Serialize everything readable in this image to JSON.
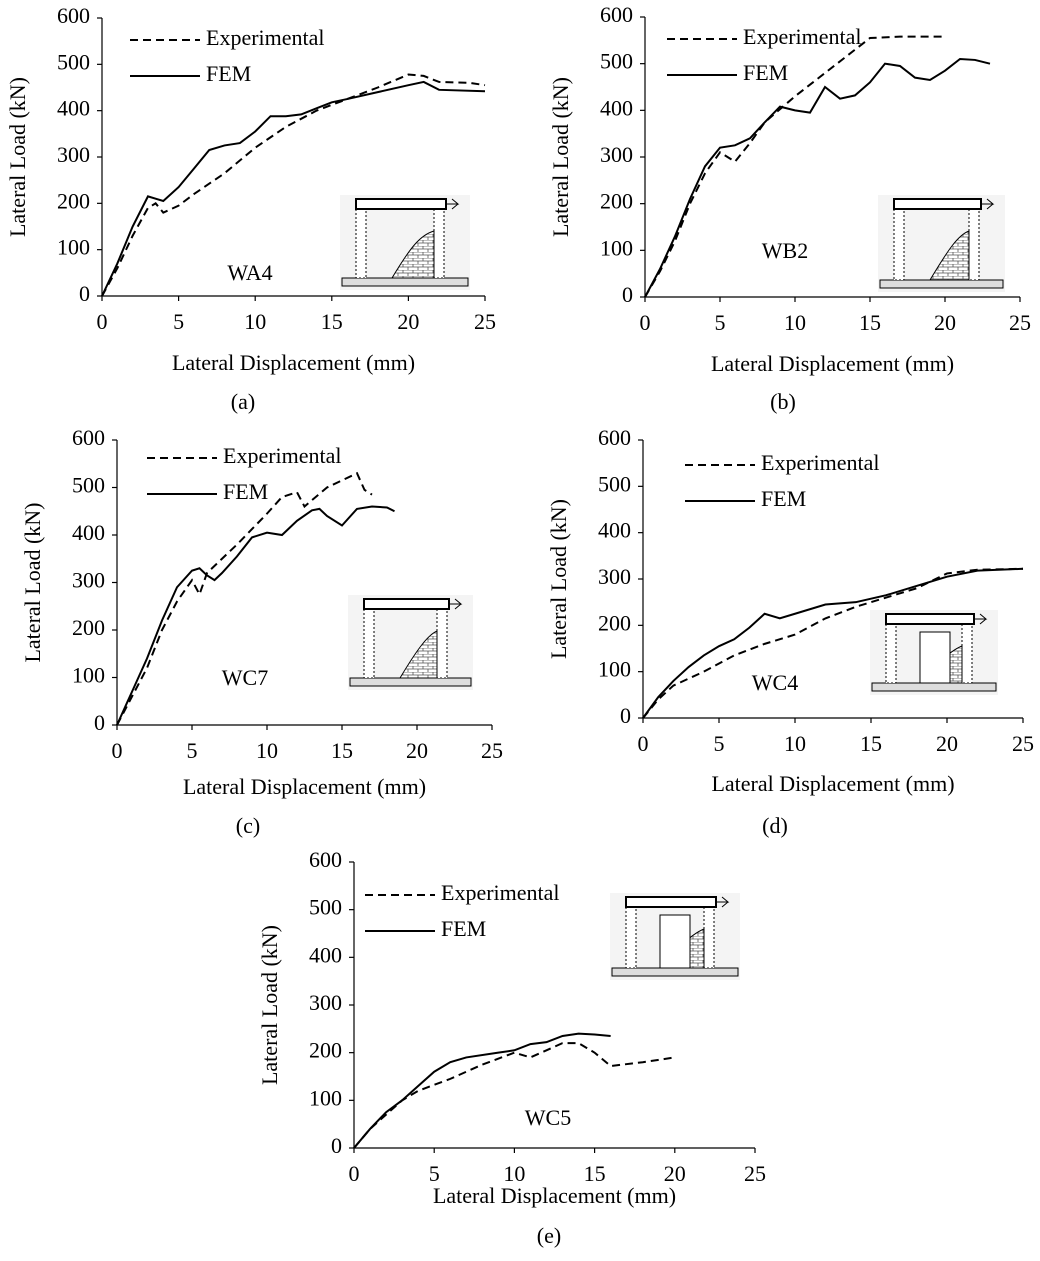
{
  "chart_data": [
    {
      "type": "line",
      "label": "WA4",
      "caption": "(a)",
      "xlabel": "Lateral Displacement (mm)",
      "ylabel": "Lateral Load (kN)",
      "xlim": [
        0,
        25
      ],
      "xticks": [
        0,
        5,
        10,
        15,
        20,
        25
      ],
      "ylim": [
        0,
        600
      ],
      "yticks": [
        0,
        100,
        200,
        300,
        400,
        500,
        600
      ],
      "series": [
        {
          "name": "Experimental",
          "color": "#000000",
          "dash": true,
          "x": [
            0,
            1,
            2,
            3,
            3.5,
            4,
            5,
            6,
            8,
            10,
            12,
            14,
            16,
            18,
            20,
            21,
            22,
            24,
            25
          ],
          "values": [
            0,
            60,
            130,
            190,
            200,
            180,
            195,
            220,
            265,
            320,
            365,
            400,
            425,
            450,
            478,
            475,
            462,
            460,
            455
          ]
        },
        {
          "name": "FEM",
          "color": "#000000",
          "dash": false,
          "x": [
            0,
            1,
            2,
            3,
            3.5,
            4,
            5,
            6,
            7,
            8,
            9,
            10,
            11,
            12,
            13,
            14,
            15,
            16,
            18,
            20,
            21,
            22,
            25
          ],
          "values": [
            0,
            70,
            150,
            215,
            210,
            205,
            235,
            275,
            315,
            325,
            330,
            355,
            388,
            388,
            392,
            405,
            418,
            425,
            440,
            455,
            462,
            445,
            442
          ]
        }
      ]
    },
    {
      "type": "line",
      "label": "WB2",
      "caption": "(b)",
      "xlabel": "Lateral Displacement (mm)",
      "ylabel": "Lateral Load (kN)",
      "xlim": [
        0,
        25
      ],
      "xticks": [
        0,
        5,
        10,
        15,
        20,
        25
      ],
      "ylim": [
        0,
        600
      ],
      "yticks": [
        0,
        100,
        200,
        300,
        400,
        500,
        600
      ],
      "series": [
        {
          "name": "Experimental",
          "color": "#000000",
          "dash": true,
          "x": [
            0,
            1,
            2,
            3,
            4,
            5,
            6,
            7,
            8,
            10,
            12,
            14,
            15,
            17,
            20
          ],
          "values": [
            0,
            55,
            120,
            200,
            265,
            310,
            290,
            330,
            375,
            430,
            480,
            530,
            555,
            558,
            558
          ]
        },
        {
          "name": "FEM",
          "color": "#000000",
          "dash": false,
          "x": [
            0,
            1,
            2,
            3,
            4,
            5,
            6,
            7,
            8,
            9,
            10,
            11,
            12,
            13,
            14,
            15,
            16,
            17,
            18,
            19,
            20,
            21,
            22,
            23
          ],
          "values": [
            0,
            60,
            130,
            210,
            280,
            320,
            325,
            340,
            375,
            408,
            400,
            395,
            450,
            425,
            432,
            460,
            500,
            495,
            470,
            465,
            485,
            510,
            508,
            500
          ]
        }
      ]
    },
    {
      "type": "line",
      "label": "WC7",
      "caption": "(c)",
      "xlabel": "Lateral Displacement (mm)",
      "ylabel": "Lateral Load (kN)",
      "xlim": [
        0,
        25
      ],
      "xticks": [
        0,
        5,
        10,
        15,
        20,
        25
      ],
      "ylim": [
        0,
        600
      ],
      "yticks": [
        0,
        100,
        200,
        300,
        400,
        500,
        600
      ],
      "series": [
        {
          "name": "Experimental",
          "color": "#000000",
          "dash": true,
          "x": [
            0,
            1,
            2,
            3,
            4,
            5,
            5.5,
            6,
            7,
            8,
            10,
            11,
            12,
            12.5,
            14,
            16,
            16.5,
            17
          ],
          "values": [
            0,
            60,
            120,
            200,
            260,
            305,
            275,
            320,
            350,
            380,
            445,
            480,
            490,
            460,
            500,
            530,
            495,
            485
          ]
        },
        {
          "name": "FEM",
          "color": "#000000",
          "dash": false,
          "x": [
            0,
            1,
            2,
            3,
            4,
            5,
            5.5,
            6,
            6.5,
            7,
            8,
            9,
            10,
            11,
            12,
            13,
            13.5,
            14,
            15,
            16,
            17,
            18,
            18.5
          ],
          "values": [
            0,
            70,
            140,
            220,
            290,
            325,
            330,
            315,
            305,
            320,
            355,
            395,
            405,
            400,
            430,
            452,
            455,
            440,
            420,
            455,
            460,
            458,
            450
          ]
        }
      ]
    },
    {
      "type": "line",
      "label": "WC4",
      "caption": "(d)",
      "xlabel": "Lateral Displacement (mm)",
      "ylabel": "Lateral Load (kN)",
      "xlim": [
        0,
        25
      ],
      "xticks": [
        0,
        5,
        10,
        15,
        20,
        25
      ],
      "ylim": [
        0,
        600
      ],
      "yticks": [
        0,
        100,
        200,
        300,
        400,
        500,
        600
      ],
      "series": [
        {
          "name": "Experimental",
          "color": "#000000",
          "dash": true,
          "x": [
            0,
            1,
            2,
            4,
            6,
            8,
            10,
            12,
            14,
            16,
            18,
            20,
            22,
            25
          ],
          "values": [
            0,
            40,
            70,
            100,
            135,
            160,
            180,
            215,
            240,
            260,
            280,
            312,
            320,
            322
          ]
        },
        {
          "name": "FEM",
          "color": "#000000",
          "dash": false,
          "x": [
            0,
            1,
            2,
            3,
            4,
            5,
            6,
            7,
            8,
            9,
            10,
            12,
            14,
            16,
            18,
            20,
            22,
            25
          ],
          "values": [
            0,
            45,
            80,
            110,
            135,
            155,
            170,
            195,
            225,
            215,
            225,
            245,
            250,
            265,
            285,
            305,
            318,
            322
          ]
        }
      ]
    },
    {
      "type": "line",
      "label": "WC5",
      "caption": "(e)",
      "xlabel": "Lateral Displacement (mm)",
      "ylabel": "Lateral Load (kN)",
      "xlim": [
        0,
        25
      ],
      "xticks": [
        0,
        5,
        10,
        15,
        20,
        25
      ],
      "ylim": [
        0,
        600
      ],
      "yticks": [
        0,
        100,
        200,
        300,
        400,
        500,
        600
      ],
      "series": [
        {
          "name": "Experimental",
          "color": "#000000",
          "dash": true,
          "x": [
            0,
            1,
            2,
            3,
            4,
            6,
            8,
            10,
            11,
            12,
            13,
            14,
            15,
            16,
            18,
            20
          ],
          "values": [
            0,
            40,
            70,
            100,
            120,
            145,
            175,
            200,
            190,
            205,
            220,
            220,
            200,
            172,
            180,
            190
          ]
        },
        {
          "name": "FEM",
          "color": "#000000",
          "dash": false,
          "x": [
            0,
            1,
            2,
            3,
            4,
            5,
            6,
            7,
            9,
            10,
            11,
            12,
            13,
            14,
            15,
            16
          ],
          "values": [
            0,
            40,
            75,
            100,
            130,
            160,
            180,
            190,
            200,
            205,
            218,
            222,
            235,
            240,
            238,
            235
          ]
        }
      ]
    }
  ]
}
